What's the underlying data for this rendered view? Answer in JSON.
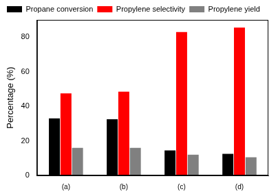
{
  "chart_data": {
    "type": "bar",
    "y_label": "Percentage (%)",
    "categories": [
      "(a)",
      "(b)",
      "(c)",
      "(d)"
    ],
    "series": [
      {
        "name": "Propane conversion",
        "color": "#000000",
        "values": [
          33,
          32.5,
          14.5,
          12.5
        ]
      },
      {
        "name": "Propylene selectivity",
        "color": "#ff0000",
        "values": [
          47.5,
          48.5,
          83,
          85.5
        ]
      },
      {
        "name": "Propylene yield",
        "color": "#808080",
        "values": [
          16,
          16,
          12,
          10.5
        ]
      }
    ],
    "ylim": [
      0,
      90
    ],
    "yticks": [
      0,
      20,
      40,
      60,
      80
    ],
    "grid": false,
    "legend": "upper left"
  }
}
